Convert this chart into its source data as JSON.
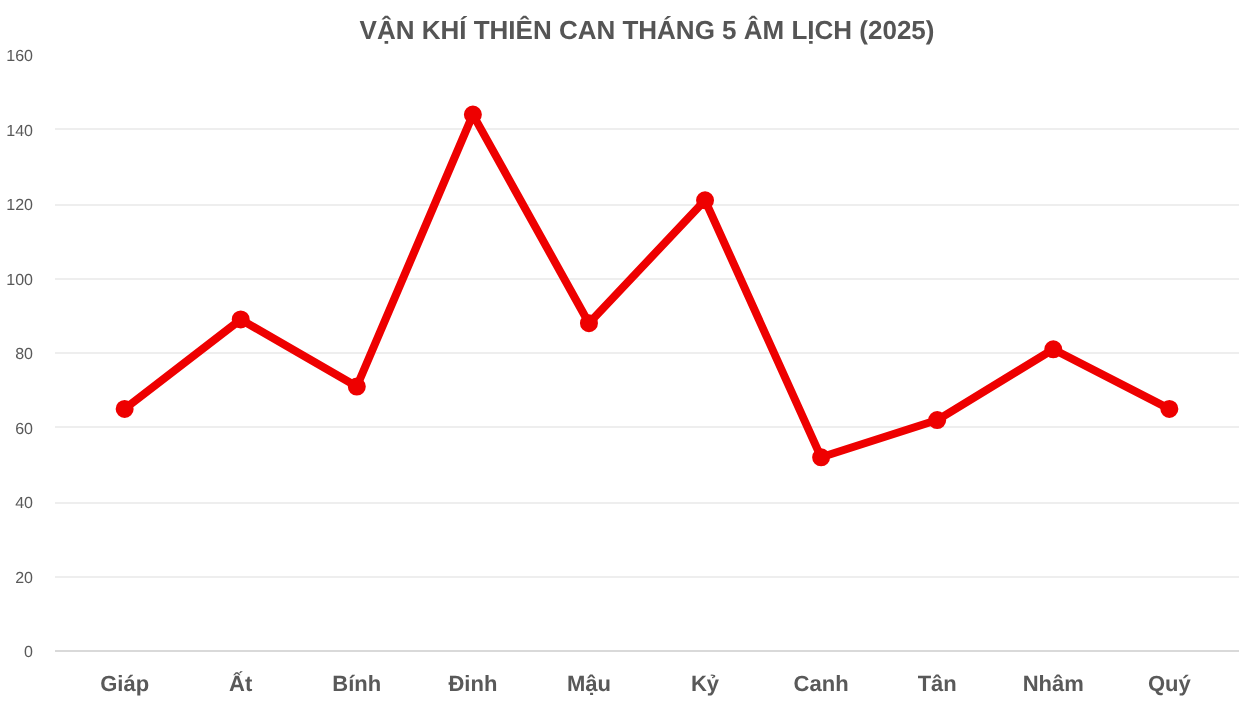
{
  "chart_data": {
    "type": "line",
    "title": "VẬN KHÍ THIÊN CAN THÁNG 5 ÂM LỊCH (2025)",
    "categories": [
      "Giáp",
      "Ất",
      "Bính",
      "Đinh",
      "Mậu",
      "Kỷ",
      "Canh",
      "Tân",
      "Nhâm",
      "Quý"
    ],
    "series": [
      {
        "color": "#ee0000",
        "values": [
          65,
          89,
          71,
          144,
          88,
          121,
          52,
          62,
          81,
          65
        ]
      }
    ],
    "ylim": [
      0,
      160
    ],
    "yticks": [
      0,
      20,
      40,
      60,
      80,
      100,
      120,
      140,
      160
    ],
    "grid": "y",
    "marker": "circle",
    "line_style": "solid"
  }
}
